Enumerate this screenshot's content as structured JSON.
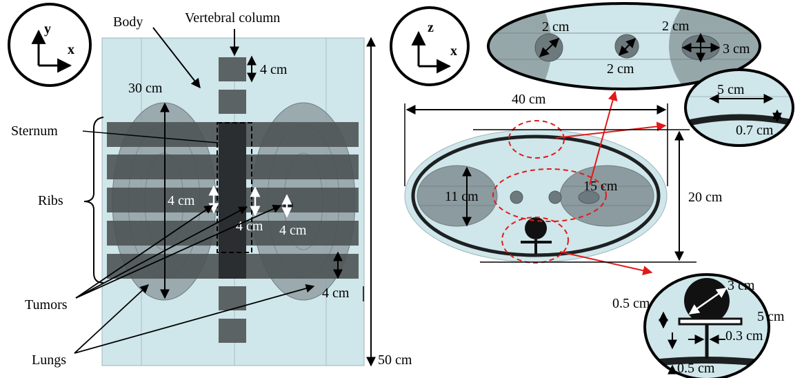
{
  "left_panel": {
    "axes": {
      "vertical": "y",
      "horizontal": "x"
    },
    "labels": {
      "body": "Body",
      "vertebral_column": "Vertebral column",
      "sternum": "Sternum",
      "ribs": "Ribs",
      "tumors": "Tumors",
      "lungs": "Lungs"
    },
    "dimensions": {
      "vertebra_height": "4 cm",
      "lung_length": "30 cm",
      "tumor_a": "4 cm",
      "tumor_b": "4 cm",
      "tumor_c": "4 cm",
      "rib_height": "4 cm",
      "body_length": "50 cm"
    }
  },
  "right_panel": {
    "axes": {
      "vertical": "z",
      "horizontal": "x"
    },
    "dimensions": {
      "body_width": "40 cm",
      "body_depth": "20 cm",
      "lung_depth": "11 cm",
      "lung_width": "15 cm"
    },
    "inset_tumors": {
      "d1": "2 cm",
      "d2": "2 cm",
      "d3": "2 cm",
      "d4": "3 cm"
    },
    "inset_skin": {
      "width": "5 cm",
      "thickness": "0.7 cm"
    },
    "inset_spine": {
      "vertebra": "3 cm",
      "a": "0.5 cm",
      "b": "5 cm",
      "c": "0.3 cm",
      "d": "0.5 cm"
    }
  },
  "colors": {
    "tissue": "#cfe6ea",
    "lung": "#8c9b9f",
    "bone": "#3a3f41",
    "highlight": "#e01a1a"
  }
}
